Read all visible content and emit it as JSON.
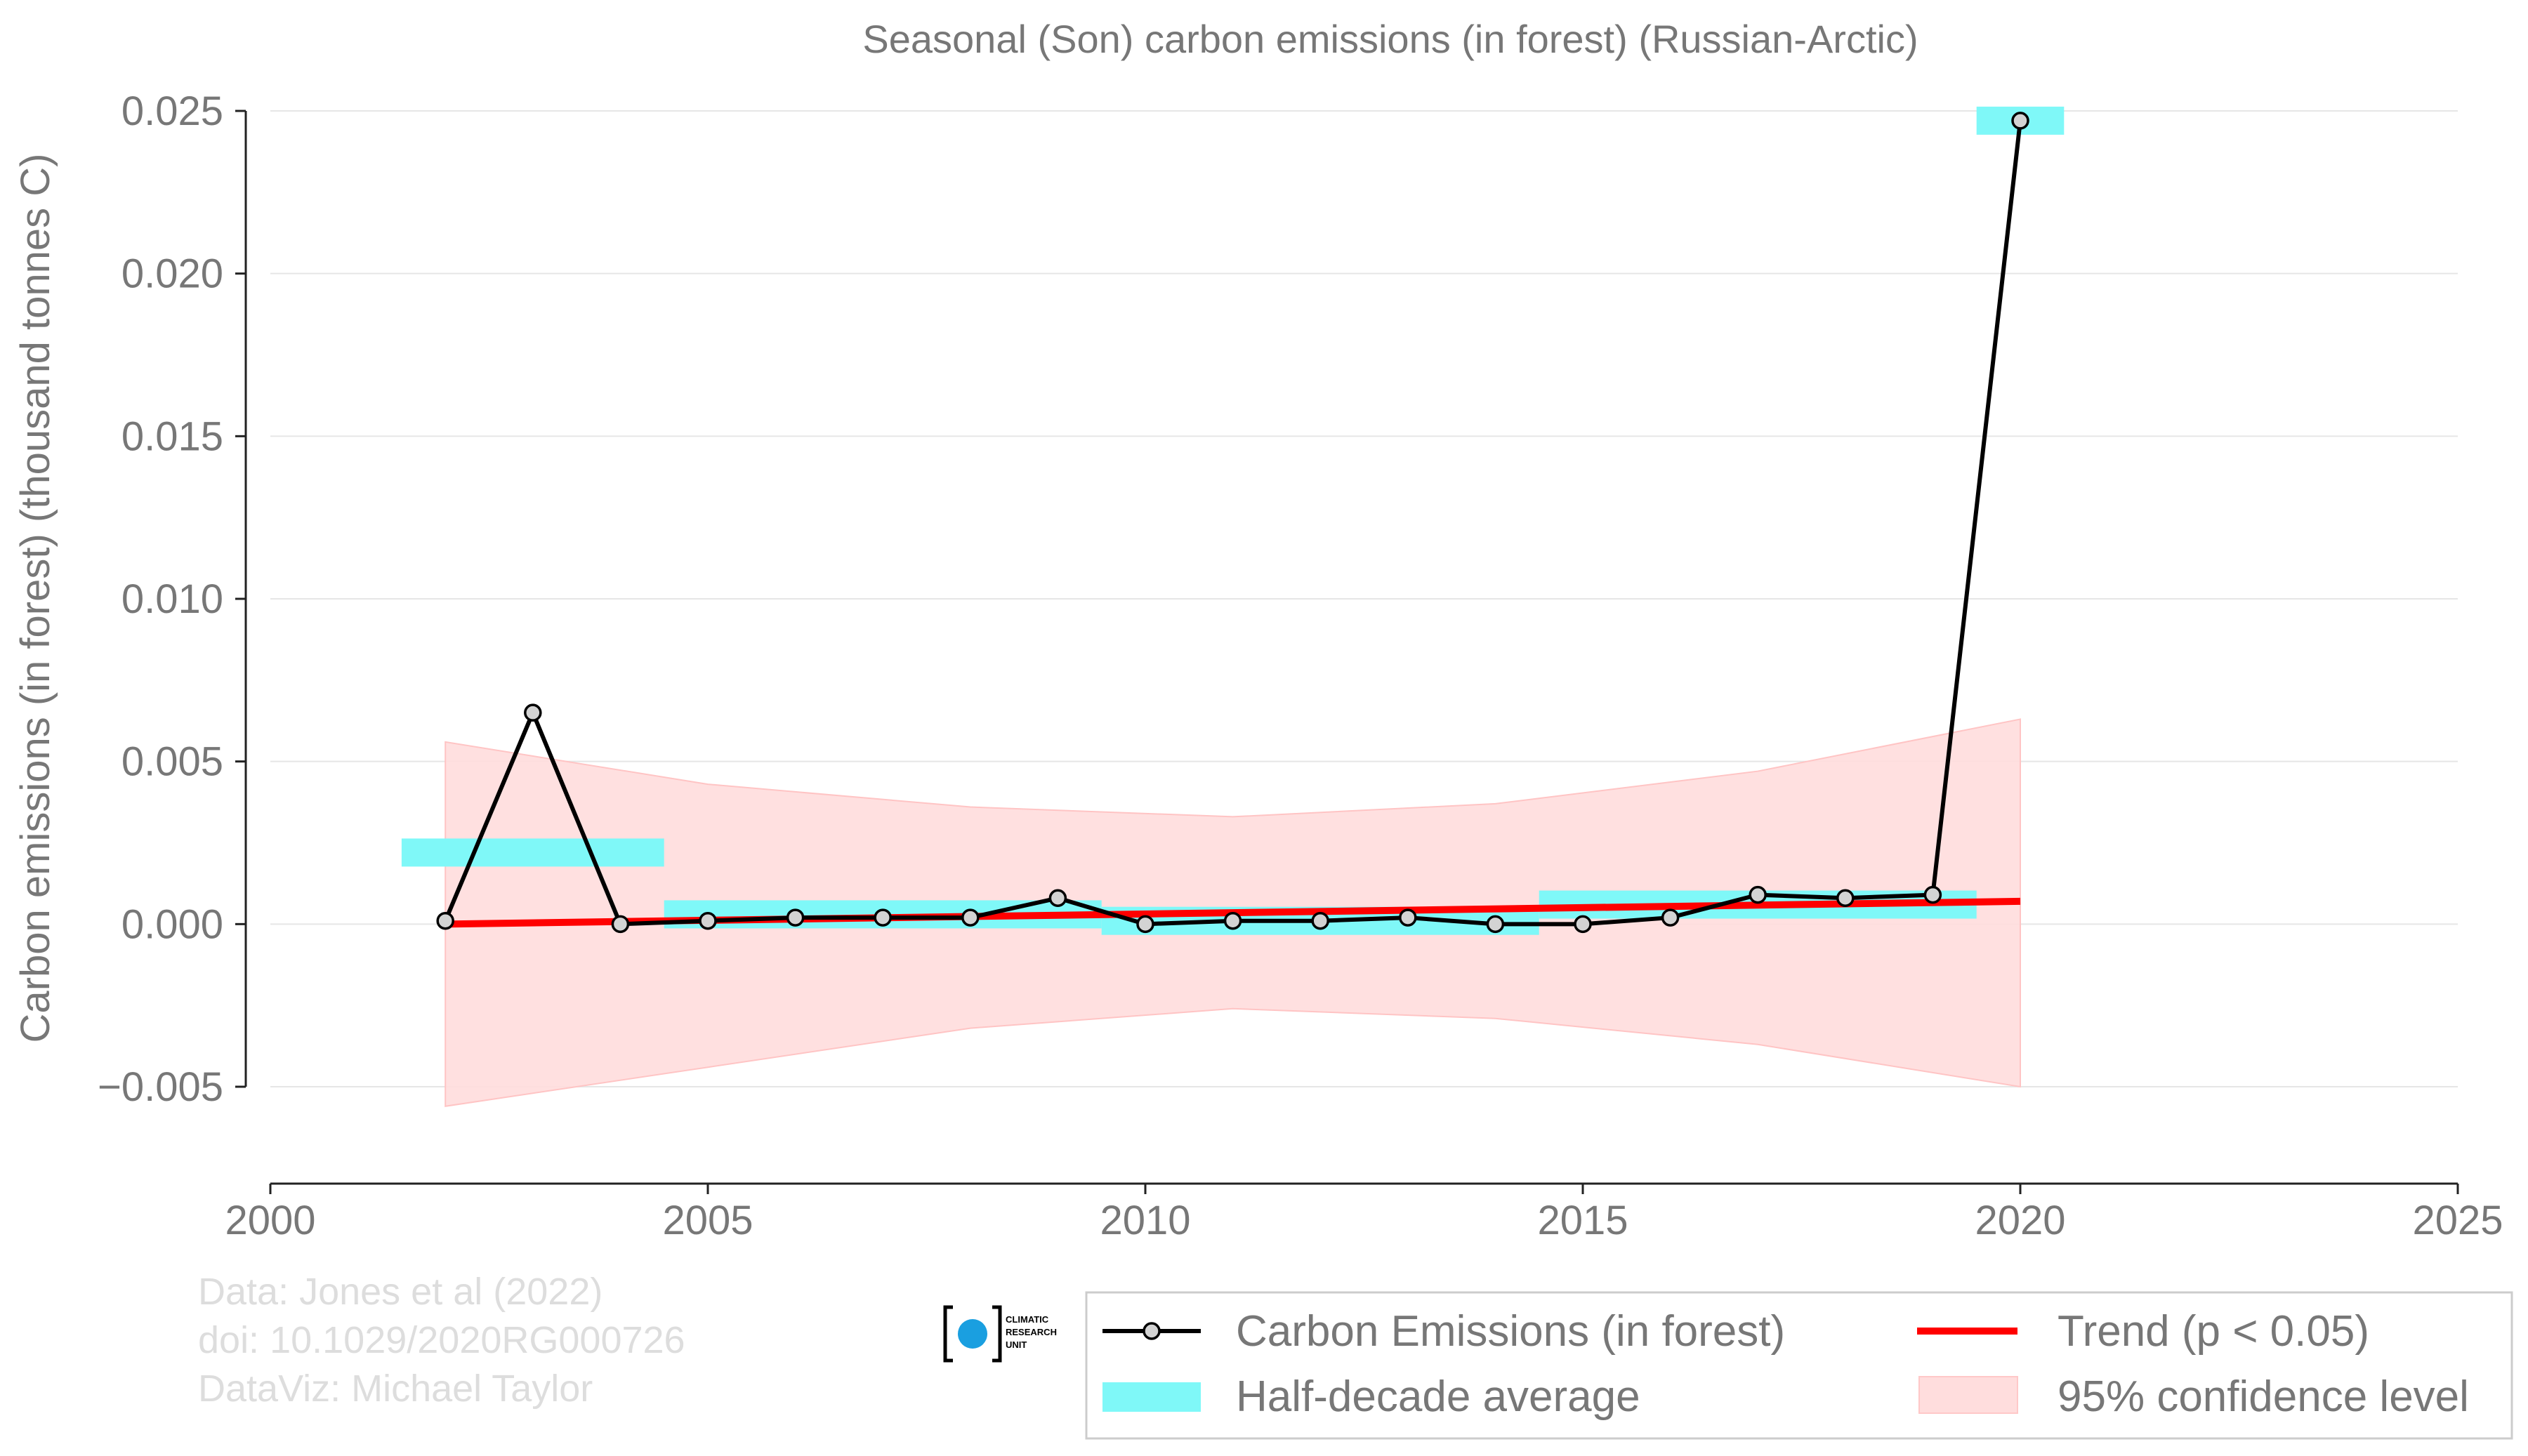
{
  "chart_data": {
    "type": "line",
    "title": "Seasonal (Son) carbon emissions (in forest) (Russian-Arctic)",
    "xlabel": "",
    "ylabel": "Carbon emissions (in forest) (thousand tonnes C)",
    "xlim": [
      2000,
      2025
    ],
    "ylim": [
      -0.008,
      0.0255
    ],
    "x_ticks": [
      2000,
      2005,
      2010,
      2015,
      2020,
      2025
    ],
    "y_ticks": [
      -0.005,
      0.0,
      0.005,
      0.01,
      0.015,
      0.02,
      0.025
    ],
    "y_tick_labels": [
      "−0.005",
      "0.000",
      "0.005",
      "0.010",
      "0.015",
      "0.020",
      "0.025"
    ],
    "grid": "horizontal",
    "legend_position": "bottom-right",
    "series": [
      {
        "name": "Carbon Emissions (in forest)",
        "color": "#000000",
        "marker_fill": "#d3d3d3",
        "x": [
          2002,
          2003,
          2004,
          2005,
          2006,
          2007,
          2008,
          2009,
          2010,
          2011,
          2012,
          2013,
          2014,
          2015,
          2016,
          2017,
          2018,
          2019,
          2020
        ],
        "y": [
          0.0001,
          0.0065,
          0.0,
          0.0001,
          0.0002,
          0.0002,
          0.0002,
          0.0008,
          0.0,
          0.0001,
          0.0001,
          0.0002,
          0.0,
          0.0,
          0.0002,
          0.0009,
          0.0008,
          0.0009,
          0.0247
        ]
      },
      {
        "name": "Half-decade average",
        "color": "#7ff8f8",
        "segments": [
          {
            "x_start": 2001.5,
            "x_end": 2004.5,
            "y": 0.0022
          },
          {
            "x_start": 2004.5,
            "x_end": 2009.5,
            "y": 0.0003
          },
          {
            "x_start": 2009.5,
            "x_end": 2014.5,
            "y": 0.0001
          },
          {
            "x_start": 2014.5,
            "x_end": 2019.5,
            "y": 0.0006
          },
          {
            "x_start": 2019.5,
            "x_end": 2020.5,
            "y": 0.0247
          }
        ]
      },
      {
        "name": "Trend (p < 0.05)",
        "color": "#ff0000",
        "x": [
          2002,
          2020
        ],
        "y": [
          0.0,
          0.0007
        ]
      },
      {
        "name": "95% confidence level",
        "color": "#ffdddd",
        "x": [
          2002,
          2005,
          2008,
          2011,
          2014,
          2017,
          2020
        ],
        "upper": [
          0.0056,
          0.0043,
          0.0036,
          0.0033,
          0.0037,
          0.0047,
          0.0063
        ],
        "lower": [
          -0.0056,
          -0.0044,
          -0.0032,
          -0.0026,
          -0.0029,
          -0.0037,
          -0.005
        ]
      }
    ]
  },
  "credits": {
    "line1": "Data: Jones et al (2022)",
    "line2": "doi: 10.1029/2020RG000726",
    "line3": "DataViz: Michael Taylor"
  },
  "logo": {
    "line1": "CLIMATIC",
    "line2": "RESEARCH",
    "line3": "UNIT"
  },
  "legend": {
    "items": [
      "Carbon Emissions (in forest)",
      "Trend (p < 0.05)",
      "Half-decade average",
      "95% confidence level"
    ]
  }
}
